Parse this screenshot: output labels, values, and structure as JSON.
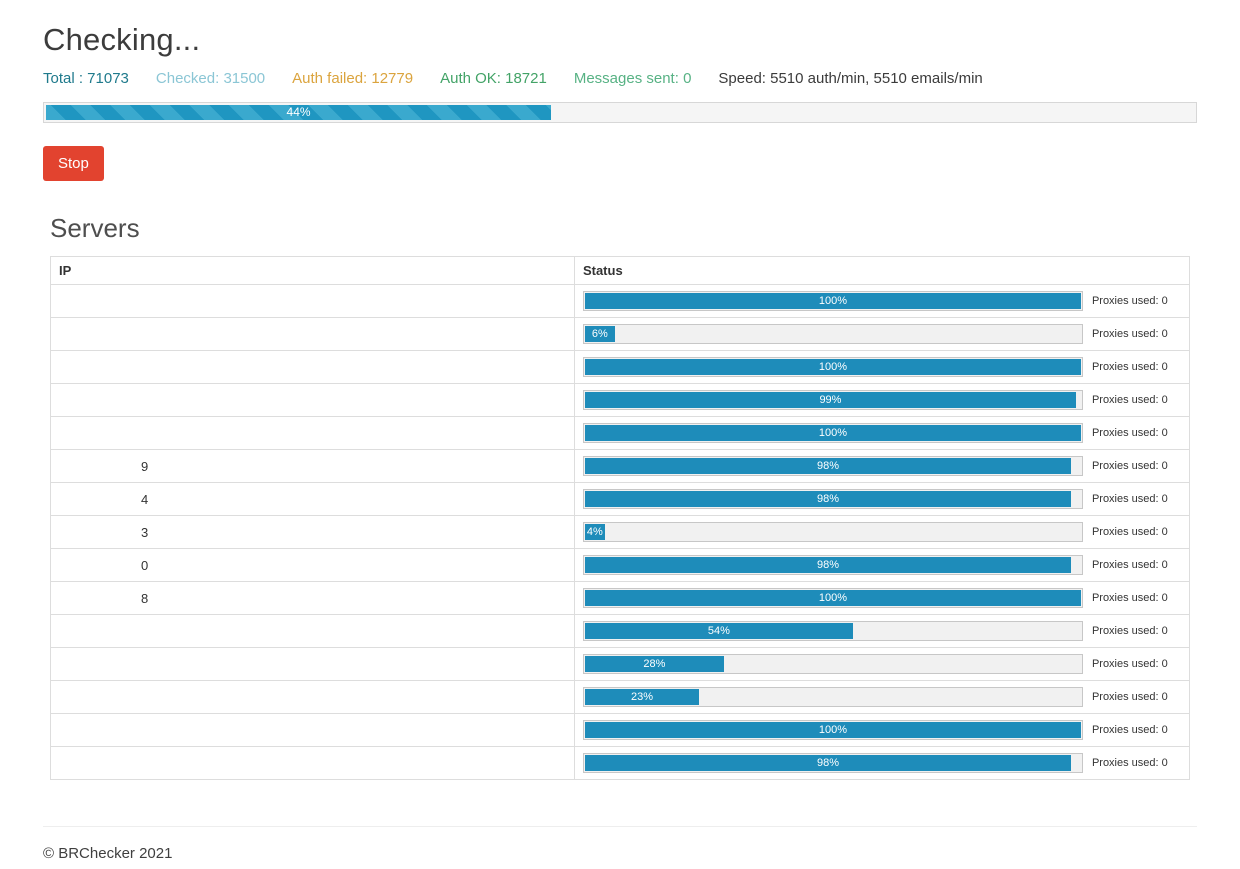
{
  "header": {
    "title": "Checking...",
    "stats": [
      {
        "id": "total",
        "label": "Total : 71073"
      },
      {
        "id": "checked",
        "label": "Checked: 31500"
      },
      {
        "id": "auth_failed",
        "label": "Auth failed: 12779"
      },
      {
        "id": "auth_ok",
        "label": "Auth OK: 18721"
      },
      {
        "id": "messages_sent",
        "label": "Messages sent: 0"
      },
      {
        "id": "speed",
        "label": "Speed: 5510 auth/min, 5510 emails/min"
      }
    ],
    "overall_progress": {
      "percent": 44,
      "label": "44%"
    },
    "stop_button_label": "Stop"
  },
  "servers": {
    "heading": "Servers",
    "columns": {
      "ip": "IP",
      "status": "Status"
    },
    "rows": [
      {
        "ip_partial": "",
        "percent": 100,
        "label": "100%",
        "proxies": "Proxies used: 0"
      },
      {
        "ip_partial": "",
        "percent": 6,
        "label": "6%",
        "proxies": "Proxies used: 0"
      },
      {
        "ip_partial": "",
        "percent": 100,
        "label": "100%",
        "proxies": "Proxies used: 0"
      },
      {
        "ip_partial": "",
        "percent": 99,
        "label": "99%",
        "proxies": "Proxies used: 0"
      },
      {
        "ip_partial": "",
        "percent": 100,
        "label": "100%",
        "proxies": "Proxies used: 0"
      },
      {
        "ip_partial": "9",
        "percent": 98,
        "label": "98%",
        "proxies": "Proxies used: 0"
      },
      {
        "ip_partial": "4",
        "percent": 98,
        "label": "98%",
        "proxies": "Proxies used: 0"
      },
      {
        "ip_partial": "3",
        "percent": 4,
        "label": "4%",
        "proxies": "Proxies used: 0"
      },
      {
        "ip_partial": "0",
        "percent": 98,
        "label": "98%",
        "proxies": "Proxies used: 0"
      },
      {
        "ip_partial": "8",
        "percent": 100,
        "label": "100%",
        "proxies": "Proxies used: 0"
      },
      {
        "ip_partial": "",
        "percent": 54,
        "label": "54%",
        "proxies": "Proxies used: 0"
      },
      {
        "ip_partial": "",
        "percent": 28,
        "label": "28%",
        "proxies": "Proxies used: 0"
      },
      {
        "ip_partial": "",
        "percent": 23,
        "label": "23%",
        "proxies": "Proxies used: 0"
      },
      {
        "ip_partial": "",
        "percent": 100,
        "label": "100%",
        "proxies": "Proxies used: 0"
      },
      {
        "ip_partial": "",
        "percent": 98,
        "label": "98%",
        "proxies": "Proxies used: 0"
      }
    ]
  },
  "footer": {
    "copyright": "© BRChecker 2021"
  },
  "colors": {
    "total": "#1f7a8c",
    "checked": "#8bc6d5",
    "auth-failed": "#dba43e",
    "auth-ok": "#43a367",
    "messages": "#57b284",
    "stop": "#e2432f",
    "bar": "#1e8cba"
  }
}
